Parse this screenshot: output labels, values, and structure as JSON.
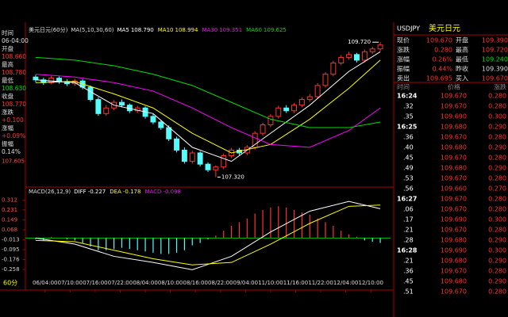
{
  "window": {
    "period": "60分"
  },
  "info_panel": {
    "rows": [
      {
        "label": "时间",
        "value": "06-04:00"
      },
      {
        "label": "开盘",
        "value": "108.660"
      },
      {
        "label": "最高",
        "value": "108.780"
      },
      {
        "label": "最低",
        "value": "108.630"
      },
      {
        "label": "收盘",
        "value": "108.770"
      },
      {
        "label": "涨跌",
        "value": "+0.100"
      },
      {
        "label": "涨幅",
        "value": "+0.09%"
      },
      {
        "label": "振幅",
        "value": "0.14%"
      }
    ]
  },
  "chart_data": [
    {
      "type": "candlestick",
      "title": "美元日元(60分)",
      "indicator": "MA(5,10,30,60)",
      "up_color": "#ff3232",
      "down_color": "#54fcfc",
      "open": [
        109.1,
        109.05,
        109.0,
        109.08,
        109.02,
        108.98,
        109.03,
        108.92,
        108.7,
        108.45,
        108.55,
        108.65,
        108.6,
        108.5,
        108.55,
        108.4,
        108.3,
        108.2,
        108.0,
        107.8,
        107.6,
        107.75,
        107.55,
        107.45,
        107.5,
        107.7,
        107.8,
        107.75,
        107.85,
        108.1,
        108.25,
        108.4,
        108.55,
        108.5,
        108.6,
        108.7,
        108.75,
        108.95,
        109.15,
        109.35,
        109.45,
        109.5,
        109.4,
        109.55,
        109.6
      ],
      "high": [
        109.14,
        109.09,
        109.12,
        109.11,
        109.06,
        109.07,
        109.06,
        108.95,
        108.74,
        108.6,
        108.69,
        108.7,
        108.63,
        108.59,
        108.58,
        108.44,
        108.34,
        108.24,
        108.04,
        107.85,
        107.79,
        107.78,
        107.58,
        107.53,
        107.74,
        107.84,
        107.84,
        107.89,
        108.14,
        108.29,
        108.44,
        108.59,
        108.6,
        108.64,
        108.74,
        108.8,
        108.99,
        109.19,
        109.39,
        109.49,
        109.55,
        109.53,
        109.59,
        109.64,
        109.72
      ],
      "low": [
        109.01,
        108.96,
        108.97,
        108.98,
        108.94,
        108.94,
        108.88,
        108.66,
        108.41,
        108.41,
        108.51,
        108.56,
        108.46,
        108.46,
        108.36,
        108.26,
        108.16,
        107.96,
        107.76,
        107.56,
        107.56,
        107.51,
        107.41,
        107.32,
        107.46,
        107.66,
        107.71,
        107.71,
        107.81,
        108.06,
        108.21,
        108.36,
        108.46,
        108.46,
        108.56,
        108.66,
        108.71,
        108.91,
        109.11,
        109.31,
        109.41,
        109.36,
        109.36,
        109.51,
        109.56
      ],
      "close": [
        109.05,
        109.0,
        109.08,
        109.02,
        108.98,
        109.03,
        108.92,
        108.7,
        108.45,
        108.55,
        108.65,
        108.6,
        108.5,
        108.55,
        108.4,
        108.3,
        108.2,
        108.0,
        107.8,
        107.6,
        107.75,
        107.55,
        107.45,
        107.5,
        107.7,
        107.8,
        107.75,
        107.85,
        108.1,
        108.25,
        108.4,
        108.55,
        108.5,
        108.6,
        108.7,
        108.75,
        108.95,
        109.15,
        109.35,
        109.45,
        109.5,
        109.4,
        109.55,
        109.6,
        109.67
      ],
      "series": [
        {
          "name": "MA5",
          "value_label": "108.790",
          "color": "#ffffff",
          "x": [
            0,
            5,
            10,
            15,
            20,
            25,
            30,
            35,
            40,
            44
          ],
          "values": [
            109.05,
            109.0,
            108.6,
            108.45,
            107.85,
            107.6,
            108.1,
            108.6,
            109.2,
            109.55
          ]
        },
        {
          "name": "MA10",
          "value_label": "108.994",
          "color": "#ffff00",
          "x": [
            0,
            5,
            10,
            15,
            20,
            25,
            30,
            35,
            40,
            44
          ],
          "values": [
            109.0,
            109.02,
            108.8,
            108.55,
            108.1,
            107.75,
            107.9,
            108.35,
            108.9,
            109.4
          ]
        },
        {
          "name": "MA30",
          "value_label": "109.351",
          "color": "#ff00ff",
          "x": [
            0,
            5,
            10,
            15,
            20,
            25,
            30,
            35,
            40,
            44
          ],
          "values": [
            109.15,
            109.1,
            109.0,
            108.85,
            108.55,
            108.2,
            107.9,
            107.85,
            108.15,
            108.55
          ]
        },
        {
          "name": "MA60",
          "value_label": "109.625",
          "color": "#00e000",
          "x": [
            0,
            5,
            10,
            15,
            20,
            25,
            30,
            35,
            40,
            44
          ],
          "values": [
            109.45,
            109.4,
            109.3,
            109.15,
            108.95,
            108.65,
            108.35,
            108.2,
            108.2,
            108.3
          ]
        }
      ],
      "annotations": [
        {
          "x": 44,
          "value": 109.72,
          "label": "109.720"
        },
        {
          "x": 23,
          "value": 107.32,
          "label": "107.320"
        }
      ],
      "xlim": [
        -0.5,
        44.5
      ],
      "ylim": [
        107.2,
        109.85
      ],
      "yticks": [
        107.605
      ]
    },
    {
      "type": "bar",
      "title": "MACD(26,12,9)",
      "up_color": "#ff3232",
      "down_color": "#54fcfc",
      "zero_color": "#00c000",
      "values": [
        -0.01,
        -0.02,
        0.01,
        0,
        -0.01,
        -0.02,
        -0.04,
        -0.07,
        -0.1,
        -0.1,
        -0.09,
        -0.08,
        -0.09,
        -0.1,
        -0.11,
        -0.12,
        -0.13,
        -0.13,
        -0.12,
        -0.1,
        -0.06,
        -0.04,
        -0.01,
        0.02,
        0.06,
        0.1,
        0.13,
        0.16,
        0.2,
        0.23,
        0.25,
        0.26,
        0.25,
        0.23,
        0.21,
        0.19,
        0.16,
        0.13,
        0.1,
        0.06,
        0.03,
        0.01,
        -0.02,
        -0.03,
        -0.04
      ],
      "series": [
        {
          "name": "DIFF",
          "value_label": "-0.227",
          "color": "#ffffff",
          "x": [
            0,
            5,
            10,
            15,
            20,
            25,
            30,
            35,
            40,
            44
          ],
          "values": [
            0.0,
            -0.05,
            -0.15,
            -0.2,
            -0.26,
            -0.15,
            0.05,
            0.22,
            0.3,
            0.24
          ]
        },
        {
          "name": "DEA",
          "value_label": "-0.178",
          "color": "#ffff00",
          "x": [
            0,
            5,
            10,
            15,
            20,
            25,
            30,
            35,
            40,
            44
          ],
          "values": [
            -0.02,
            -0.03,
            -0.1,
            -0.17,
            -0.22,
            -0.2,
            -0.05,
            0.12,
            0.26,
            0.27
          ]
        },
        {
          "name": "MACD",
          "value_label": "-0.098",
          "color": "#ff00ff",
          "x": [],
          "values": []
        }
      ],
      "xlim": [
        -0.5,
        44.5
      ],
      "ylim": [
        -0.29,
        0.34
      ],
      "yticks": [
        0.312,
        0.231,
        0.149,
        0.068,
        -0.013,
        -0.095,
        -0.176,
        -0.258
      ],
      "xticks": [
        {
          "value": 1.2,
          "label": "06/04:00"
        },
        {
          "value": 4.4,
          "label": "07/10:00"
        },
        {
          "value": 7.6,
          "label": "07/16:00"
        },
        {
          "value": 10.8,
          "label": "07/22:00"
        },
        {
          "value": 14,
          "label": "08/04:00"
        },
        {
          "value": 17.2,
          "label": "08/10:00"
        },
        {
          "value": 20.4,
          "label": "08/16:00"
        },
        {
          "value": 23.6,
          "label": "08/22:00"
        },
        {
          "value": 26.8,
          "label": "09/04:00"
        },
        {
          "value": 30,
          "label": "11/10:00"
        },
        {
          "value": 33.2,
          "label": "11/16:00"
        },
        {
          "value": 36.4,
          "label": "11/22:00"
        },
        {
          "value": 39.6,
          "label": "12/04:00"
        },
        {
          "value": 42.8,
          "label": "12/10:00"
        }
      ]
    }
  ],
  "quote": {
    "symbol": "USDJPY",
    "name": "美元日元",
    "rows": [
      [
        "现价",
        "109.670",
        "开盘",
        "109.390"
      ],
      [
        "涨跌",
        "0.280",
        "最高",
        "109.720"
      ],
      [
        "涨幅",
        "0.26%",
        "最低",
        "109.240"
      ],
      [
        "振幅",
        "0.44%",
        "昨收",
        "109.390"
      ],
      [
        "卖出",
        "109.695",
        "买入",
        "109.670"
      ]
    ],
    "ticks_header": [
      "时间",
      "价格",
      "涨跌"
    ],
    "ticks": [
      [
        "16:24",
        "109.670",
        "0.280"
      ],
      [
        ".32",
        "109.670",
        "0.280"
      ],
      [
        ".35",
        "109.690",
        "0.300"
      ],
      [
        "16:25",
        "109.680",
        "0.290"
      ],
      [
        ".36",
        "109.670",
        "0.280"
      ],
      [
        ".40",
        "109.680",
        "0.290"
      ],
      [
        ".45",
        "109.670",
        "0.280"
      ],
      [
        ".49",
        "109.680",
        "0.290"
      ],
      [
        ".53",
        "109.670",
        "0.280"
      ],
      [
        ".56",
        "109.660",
        "0.270"
      ],
      [
        "16:27",
        "109.670",
        "0.280"
      ],
      [
        ".06",
        "109.670",
        "0.280"
      ],
      [
        ".17",
        "109.690",
        "0.300"
      ],
      [
        ".21",
        "109.670",
        "0.280"
      ],
      [
        ".28",
        "109.680",
        "0.290"
      ],
      [
        "16:28",
        "109.690",
        "0.300"
      ],
      [
        ".21",
        "109.680",
        "0.290"
      ],
      [
        ".36",
        "109.670",
        "0.280"
      ],
      [
        ".45",
        "109.680",
        "0.290"
      ],
      [
        ".51",
        "109.670",
        "0.280"
      ]
    ]
  }
}
